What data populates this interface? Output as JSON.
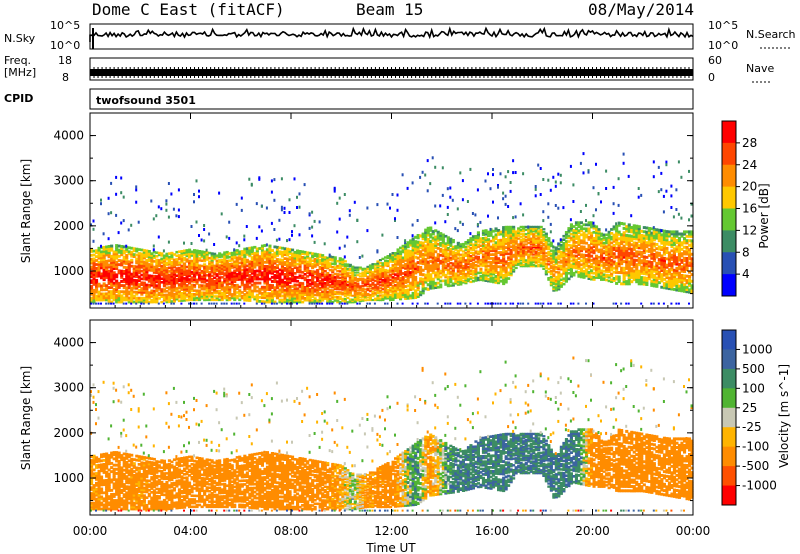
{
  "header": {
    "station": "Dome C East (fitACF)",
    "beam": "Beam 15",
    "date": "08/May/2014"
  },
  "noise_panel": {
    "left_label": "N.Sky",
    "right_label": "N.Search",
    "left_ticks": [
      "10^5",
      "10^0"
    ],
    "right_ticks": [
      "10^5",
      "10^0"
    ]
  },
  "freq_panel": {
    "left_label_1": "Freq.",
    "left_label_2": "[MHz]",
    "right_label": "Nave",
    "left_ticks": [
      "18",
      "8"
    ],
    "right_ticks": [
      "60",
      "0"
    ]
  },
  "cpid_panel": {
    "label": "CPID",
    "program": "twofsound 3501"
  },
  "axes": {
    "ylabel": "Slant Range [km]",
    "xlabel": "Time UT",
    "ylim": [
      180,
      4500
    ],
    "xlim": [
      0,
      24
    ],
    "y_ticks": [
      "1000",
      "2000",
      "3000",
      "4000"
    ],
    "x_ticks": [
      "00:00",
      "04:00",
      "08:00",
      "12:00",
      "16:00",
      "20:00",
      "00:00"
    ]
  },
  "colors": {
    "power": [
      "#0000ff",
      "#2850b4",
      "#3c8c64",
      "#64c832",
      "#ffc800",
      "#ff8c00",
      "#ff4600",
      "#ff0000"
    ],
    "velocity": [
      "#2850b4",
      "#3c64a0",
      "#3c8c64",
      "#50b432",
      "#c8c8b4",
      "#ffb400",
      "#ff8c00",
      "#ff5000",
      "#ff0000"
    ]
  },
  "chart_data": [
    {
      "type": "heatmap",
      "quantity": "Power",
      "colorbar_label": "Power [dB]",
      "colorbar_ticks": [
        "4",
        "8",
        "12",
        "16",
        "20",
        "24",
        "28"
      ],
      "clim": [
        0,
        32
      ],
      "xlabel": "",
      "ylabel": "Slant Range [km]",
      "xlim": [
        0,
        24
      ],
      "ylim": [
        180,
        4500
      ],
      "series": [
        {
          "x": [
            0,
            1,
            2,
            3,
            4,
            5,
            6,
            7,
            8,
            9,
            10,
            10.5,
            11,
            12,
            13,
            13.5,
            14.8,
            15.5,
            16.5,
            17,
            18,
            18.5,
            19.2,
            20,
            20.5,
            21,
            22,
            23,
            24
          ],
          "range_low_km": [
            300,
            300,
            300,
            300,
            350,
            350,
            350,
            300,
            300,
            300,
            300,
            300,
            350,
            350,
            400,
            600,
            700,
            800,
            700,
            1100,
            1100,
            500,
            900,
            800,
            800,
            700,
            700,
            600,
            500
          ],
          "range_high_km": [
            1500,
            1600,
            1500,
            1400,
            1500,
            1400,
            1500,
            1600,
            1500,
            1400,
            1300,
            1100,
            1100,
            1400,
            1800,
            2000,
            1600,
            1900,
            2000,
            2000,
            2000,
            1500,
            2100,
            2100,
            1800,
            2100,
            2000,
            1900,
            1900
          ],
          "peak_power_dB": [
            30,
            30,
            30,
            30,
            29,
            29,
            30,
            30,
            30,
            30,
            28,
            26,
            28,
            27,
            26,
            24,
            26,
            24,
            26,
            26,
            26,
            22,
            24,
            26,
            26,
            26,
            26,
            26,
            26
          ]
        }
      ]
    },
    {
      "type": "heatmap",
      "quantity": "Velocity",
      "colorbar_label": "Velocity [m s^-1]",
      "colorbar_ticks": [
        "1000",
        "500",
        "100",
        "25",
        "-25",
        "-100",
        "-500",
        "-1000"
      ],
      "clim": [
        -1000,
        1000
      ],
      "xlabel": "Time UT",
      "ylabel": "Slant Range [km]",
      "xlim": [
        0,
        24
      ],
      "ylim": [
        180,
        4500
      ],
      "series": [
        {
          "x": [
            0,
            1,
            2,
            3,
            4,
            5,
            6,
            7,
            8,
            9,
            10,
            10.5,
            11,
            12,
            13,
            13.5,
            14.8,
            15.5,
            16.5,
            17,
            18,
            18.5,
            19.2,
            20,
            20.5,
            21,
            22,
            23,
            24
          ],
          "range_low_km": [
            300,
            300,
            300,
            300,
            350,
            350,
            350,
            300,
            300,
            300,
            300,
            300,
            350,
            350,
            400,
            600,
            700,
            800,
            700,
            1100,
            1100,
            500,
            900,
            800,
            800,
            700,
            700,
            600,
            500
          ],
          "range_high_km": [
            1500,
            1600,
            1500,
            1400,
            1500,
            1400,
            1500,
            1600,
            1500,
            1400,
            1300,
            1100,
            1100,
            1400,
            1800,
            2000,
            1600,
            1900,
            2000,
            2000,
            2000,
            1500,
            2100,
            2100,
            1800,
            2100,
            2000,
            1900,
            1900
          ],
          "velocity_m_s": [
            -150,
            -200,
            -150,
            -250,
            -300,
            -250,
            -200,
            -250,
            -300,
            -250,
            -100,
            50,
            -150,
            -200,
            150,
            -150,
            300,
            200,
            250,
            300,
            300,
            300,
            300,
            -200,
            -250,
            -300,
            -300,
            -250,
            -200
          ]
        }
      ]
    }
  ]
}
